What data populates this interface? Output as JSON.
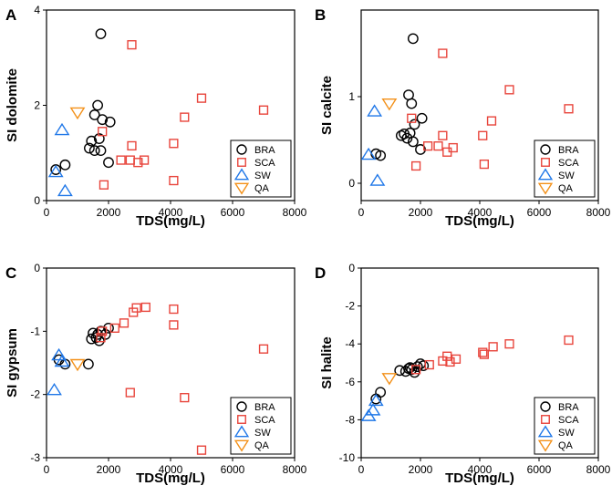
{
  "colors": {
    "BRA": "#000000",
    "SCA": "#e8453c",
    "SW": "#1f77e8",
    "QA": "#f39018"
  },
  "chart_data": [
    {
      "type": "scatter",
      "panel_letter": "A",
      "xlabel": "TDS(mg/L)",
      "ylabel": "SI dolomite",
      "xlim": [
        0,
        8000
      ],
      "ylim": [
        0,
        4
      ],
      "xticks": [
        0,
        2000,
        4000,
        6000,
        8000
      ],
      "yticks": [
        0,
        2,
        4
      ],
      "xtick_labels": [
        "0",
        "2000",
        "4000",
        "6000",
        "8000"
      ],
      "ytick_labels": [
        "0",
        "2",
        "4"
      ],
      "legend_position": "bottom-right",
      "series": [
        {
          "name": "BRA",
          "marker": "circle",
          "points": [
            [
              1750,
              3.5
            ],
            [
              1650,
              2.0
            ],
            [
              1550,
              1.8
            ],
            [
              1800,
              1.7
            ],
            [
              1450,
              1.25
            ],
            [
              1700,
              1.3
            ],
            [
              1550,
              1.05
            ],
            [
              1750,
              1.05
            ],
            [
              1380,
              1.1
            ],
            [
              2050,
              1.65
            ],
            [
              300,
              0.65
            ],
            [
              600,
              0.75
            ],
            [
              2000,
              0.8
            ]
          ]
        },
        {
          "name": "SCA",
          "marker": "square",
          "points": [
            [
              2750,
              3.27
            ],
            [
              5000,
              2.15
            ],
            [
              7000,
              1.9
            ],
            [
              4450,
              1.75
            ],
            [
              1800,
              1.45
            ],
            [
              4100,
              1.2
            ],
            [
              2750,
              1.15
            ],
            [
              2400,
              0.85
            ],
            [
              2700,
              0.85
            ],
            [
              2950,
              0.8
            ],
            [
              3150,
              0.85
            ],
            [
              4100,
              0.42
            ],
            [
              1850,
              0.33
            ]
          ]
        },
        {
          "name": "SW",
          "marker": "triangle-up",
          "points": [
            [
              500,
              1.48
            ],
            [
              300,
              0.6
            ],
            [
              600,
              0.2
            ]
          ]
        },
        {
          "name": "QA",
          "marker": "triangle-down",
          "points": [
            [
              1000,
              1.85
            ]
          ]
        }
      ]
    },
    {
      "type": "scatter",
      "panel_letter": "B",
      "xlabel": "TDS(mg/L)",
      "ylabel": "SI calcite",
      "xlim": [
        0,
        8000
      ],
      "ylim": [
        -0.2,
        2.0
      ],
      "xticks": [
        0,
        2000,
        4000,
        6000,
        8000
      ],
      "yticks": [
        0,
        1
      ],
      "xtick_labels": [
        "0",
        "2000",
        "4000",
        "6000",
        "8000"
      ],
      "ytick_labels": [
        "0",
        "1"
      ],
      "legend_position": "bottom-right",
      "series": [
        {
          "name": "BRA",
          "marker": "circle",
          "points": [
            [
              1750,
              1.67
            ],
            [
              1600,
              1.02
            ],
            [
              1700,
              0.92
            ],
            [
              1800,
              0.68
            ],
            [
              2050,
              0.75
            ],
            [
              1450,
              0.57
            ],
            [
              1650,
              0.58
            ],
            [
              1350,
              0.55
            ],
            [
              1550,
              0.52
            ],
            [
              1750,
              0.48
            ],
            [
              2000,
              0.39
            ],
            [
              500,
              0.34
            ],
            [
              650,
              0.32
            ]
          ]
        },
        {
          "name": "SCA",
          "marker": "square",
          "points": [
            [
              2750,
              1.5
            ],
            [
              5000,
              1.08
            ],
            [
              7000,
              0.86
            ],
            [
              1700,
              0.75
            ],
            [
              4400,
              0.72
            ],
            [
              4100,
              0.55
            ],
            [
              2750,
              0.55
            ],
            [
              2250,
              0.43
            ],
            [
              2600,
              0.43
            ],
            [
              3100,
              0.41
            ],
            [
              2900,
              0.36
            ],
            [
              4150,
              0.22
            ],
            [
              1850,
              0.2
            ]
          ]
        },
        {
          "name": "SW",
          "marker": "triangle-up",
          "points": [
            [
              450,
              0.83
            ],
            [
              250,
              0.33
            ],
            [
              550,
              0.03
            ]
          ]
        },
        {
          "name": "QA",
          "marker": "triangle-down",
          "points": [
            [
              950,
              0.92
            ]
          ]
        }
      ]
    },
    {
      "type": "scatter",
      "panel_letter": "C",
      "xlabel": "TDS(mg/L)",
      "ylabel": "SI gypsum",
      "xlim": [
        0,
        8000
      ],
      "ylim": [
        -3,
        0
      ],
      "xticks": [
        0,
        2000,
        4000,
        6000,
        8000
      ],
      "yticks": [
        -3,
        -2,
        -1,
        0
      ],
      "xtick_labels": [
        "0",
        "2000",
        "4000",
        "6000",
        "8000"
      ],
      "ytick_labels": [
        "-3",
        "-2",
        "-1",
        "0"
      ],
      "legend_position": "bottom-right",
      "series": [
        {
          "name": "BRA",
          "marker": "circle",
          "points": [
            [
              1500,
              -1.03
            ],
            [
              1650,
              -1.05
            ],
            [
              1750,
              -1.0
            ],
            [
              1600,
              -1.1
            ],
            [
              1700,
              -1.15
            ],
            [
              1450,
              -1.12
            ],
            [
              1900,
              -1.05
            ],
            [
              2000,
              -0.95
            ],
            [
              1350,
              -1.52
            ],
            [
              400,
              -1.45
            ],
            [
              600,
              -1.52
            ]
          ]
        },
        {
          "name": "SCA",
          "marker": "square",
          "points": [
            [
              2900,
              -0.63
            ],
            [
              3200,
              -0.62
            ],
            [
              2800,
              -0.7
            ],
            [
              4100,
              -0.65
            ],
            [
              4100,
              -0.9
            ],
            [
              2500,
              -0.87
            ],
            [
              2200,
              -0.95
            ],
            [
              1800,
              -1.0
            ],
            [
              1750,
              -1.1
            ],
            [
              7000,
              -1.28
            ],
            [
              2700,
              -1.97
            ],
            [
              4450,
              -2.05
            ],
            [
              5000,
              -2.88
            ]
          ]
        },
        {
          "name": "SW",
          "marker": "triangle-up",
          "points": [
            [
              400,
              -1.38
            ],
            [
              500,
              -1.48
            ],
            [
              250,
              -1.93
            ]
          ]
        },
        {
          "name": "QA",
          "marker": "triangle-down",
          "points": [
            [
              1000,
              -1.52
            ]
          ]
        }
      ]
    },
    {
      "type": "scatter",
      "panel_letter": "D",
      "xlabel": "TDS(mg/L)",
      "ylabel": "SI halite",
      "xlim": [
        0,
        8000
      ],
      "ylim": [
        -10,
        0
      ],
      "xticks": [
        0,
        2000,
        4000,
        6000,
        8000
      ],
      "yticks": [
        -10,
        -8,
        -6,
        -4,
        -2,
        0
      ],
      "xtick_labels": [
        "0",
        "2000",
        "4000",
        "6000",
        "8000"
      ],
      "ytick_labels": [
        "-10",
        "-8",
        "-6",
        "-4",
        "-2",
        "0"
      ],
      "legend_position": "bottom-right",
      "series": [
        {
          "name": "BRA",
          "marker": "circle",
          "points": [
            [
              1300,
              -5.4
            ],
            [
              1500,
              -5.45
            ],
            [
              1600,
              -5.3
            ],
            [
              1700,
              -5.35
            ],
            [
              1800,
              -5.5
            ],
            [
              1650,
              -5.25
            ],
            [
              1900,
              -5.2
            ],
            [
              2000,
              -5.05
            ],
            [
              2100,
              -5.15
            ],
            [
              500,
              -6.9
            ],
            [
              650,
              -6.55
            ]
          ]
        },
        {
          "name": "SCA",
          "marker": "square",
          "points": [
            [
              1850,
              -5.35
            ],
            [
              2300,
              -5.1
            ],
            [
              2750,
              -4.9
            ],
            [
              2900,
              -4.65
            ],
            [
              3000,
              -4.95
            ],
            [
              3200,
              -4.8
            ],
            [
              4100,
              -4.45
            ],
            [
              4150,
              -4.55
            ],
            [
              4450,
              -4.15
            ],
            [
              5000,
              -4.0
            ],
            [
              7000,
              -3.8
            ]
          ]
        },
        {
          "name": "SW",
          "marker": "triangle-up",
          "points": [
            [
              250,
              -7.8
            ],
            [
              400,
              -7.5
            ],
            [
              500,
              -7.0
            ]
          ]
        },
        {
          "name": "QA",
          "marker": "triangle-down",
          "points": [
            [
              950,
              -5.8
            ]
          ]
        }
      ]
    }
  ]
}
